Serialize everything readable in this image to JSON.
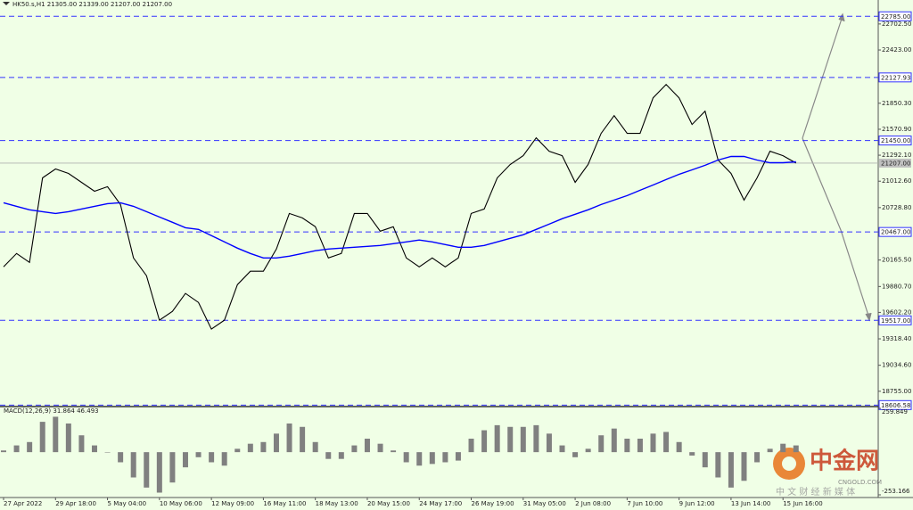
{
  "chart_data": [
    {
      "type": "line",
      "title": "HK50.s,H1  21305.00 21339.00 21207.00 21207.00",
      "categories": [
        "27 Apr 2022",
        null,
        null,
        null,
        "29 Apr 18:00",
        null,
        null,
        null,
        "5 May 04:00",
        null,
        null,
        null,
        "10 May 06:00",
        null,
        null,
        null,
        "12 May 09:00",
        null,
        null,
        null,
        "16 May 11:00",
        null,
        null,
        null,
        "18 May 13:00",
        null,
        null,
        null,
        "20 May 15:00",
        null,
        null,
        null,
        "24 May 17:00",
        null,
        null,
        null,
        "26 May 19:00",
        null,
        null,
        null,
        "31 May 05:00",
        null,
        null,
        null,
        "2 Jun 08:00",
        null,
        null,
        null,
        "7 Jun 10:00",
        null,
        null,
        null,
        "9 Jun 12:00",
        null,
        null,
        null,
        "13 Jun 14:00",
        null,
        null,
        null,
        "15 Jun 16:00",
        null
      ],
      "series": [
        {
          "color": "#000000",
          "values": [
            20092,
            20236,
            20140,
            21048,
            21144,
            21096,
            21000,
            20905,
            20953,
            20762,
            20188,
            19997,
            19519,
            19614,
            19806,
            19710,
            19423,
            19519,
            19901,
            20045,
            20045,
            20284,
            20666,
            20618,
            20523,
            20188,
            20236,
            20666,
            20666,
            20475,
            20523,
            20188,
            20092,
            20188,
            20092,
            20188,
            20666,
            20714,
            21048,
            21192,
            21287,
            21479,
            21335,
            21287,
            21000,
            21192,
            21526,
            21717,
            21526,
            21526,
            21909,
            22052,
            21909,
            21622,
            21765,
            21240,
            21096,
            20810,
            21048,
            21335,
            21287,
            21207
          ]
        },
        {
          "color": "#0000ff",
          "values": [
            20781,
            20743,
            20705,
            20685,
            20666,
            20685,
            20714,
            20743,
            20771,
            20781,
            20743,
            20685,
            20628,
            20571,
            20513,
            20494,
            20427,
            20360,
            20293,
            20236,
            20188,
            20188,
            20207,
            20236,
            20265,
            20284,
            20293,
            20303,
            20312,
            20322,
            20341,
            20360,
            20380,
            20360,
            20332,
            20303,
            20303,
            20322,
            20360,
            20399,
            20437,
            20494,
            20551,
            20609,
            20657,
            20705,
            20762,
            20810,
            20858,
            20915,
            20972,
            21030,
            21087,
            21135,
            21183,
            21240,
            21278,
            21278,
            21240,
            21211,
            21211,
            21221
          ]
        }
      ],
      "ylim": [
        18600,
        22960
      ],
      "yticks": [
        {
          "value": 22702.5,
          "label": "22702.50"
        },
        {
          "value": 22423,
          "label": "22423.00"
        },
        {
          "value": 21850.3,
          "label": "21850.30"
        },
        {
          "value": 21570.9,
          "label": "21570.90"
        },
        {
          "value": 21292.1,
          "label": "21292.10"
        },
        {
          "value": 21012.6,
          "label": "21012.60"
        },
        {
          "value": 20728.8,
          "label": "20728.80"
        },
        {
          "value": 20165.5,
          "label": "20165.50"
        },
        {
          "value": 19880.7,
          "label": "19880.70"
        },
        {
          "value": 19602.2,
          "label": "19602.20"
        },
        {
          "value": 19318.4,
          "label": "19318.40"
        },
        {
          "value": 19034.6,
          "label": "19034.60"
        },
        {
          "value": 18755,
          "label": "18755.00"
        }
      ],
      "levels": [
        {
          "value": 22785,
          "label": "22785.00"
        },
        {
          "value": 22127.93,
          "label": "22127.93"
        },
        {
          "value": 21450,
          "label": "21450.00"
        },
        {
          "value": 20467,
          "label": "20467.00"
        },
        {
          "value": 19517,
          "label": "19517.00"
        },
        {
          "value": 18606.58,
          "label": "18606.58"
        }
      ],
      "level_color": "#3333ff",
      "current": {
        "value": 21207,
        "label": "21207.00"
      }
    },
    {
      "type": "bar",
      "title": "MACD(12,26,9) 31.864 46.493",
      "color": "#808080",
      "values": [
        10,
        40,
        60,
        180,
        210,
        170,
        100,
        40,
        0,
        -60,
        -150,
        -210,
        -240,
        -180,
        -90,
        -30,
        -60,
        -80,
        20,
        50,
        60,
        110,
        170,
        150,
        60,
        -40,
        -40,
        40,
        80,
        50,
        10,
        -60,
        -80,
        -70,
        -60,
        -50,
        80,
        130,
        160,
        150,
        150,
        160,
        110,
        40,
        -30,
        20,
        100,
        140,
        80,
        80,
        110,
        120,
        60,
        -20,
        -90,
        -150,
        -210,
        -170,
        -60,
        20,
        50,
        40
      ],
      "ylim": [
        -253.166,
        259.849
      ],
      "yticks": [
        {
          "value": 259.849,
          "label": "259.849"
        },
        {
          "value": -253.166,
          "label": "-253.166"
        }
      ]
    }
  ],
  "watermark": {
    "brand": "中金网",
    "site": "CNGOLD.COM",
    "slogan": "中 文 财 经 新 媒 体"
  }
}
